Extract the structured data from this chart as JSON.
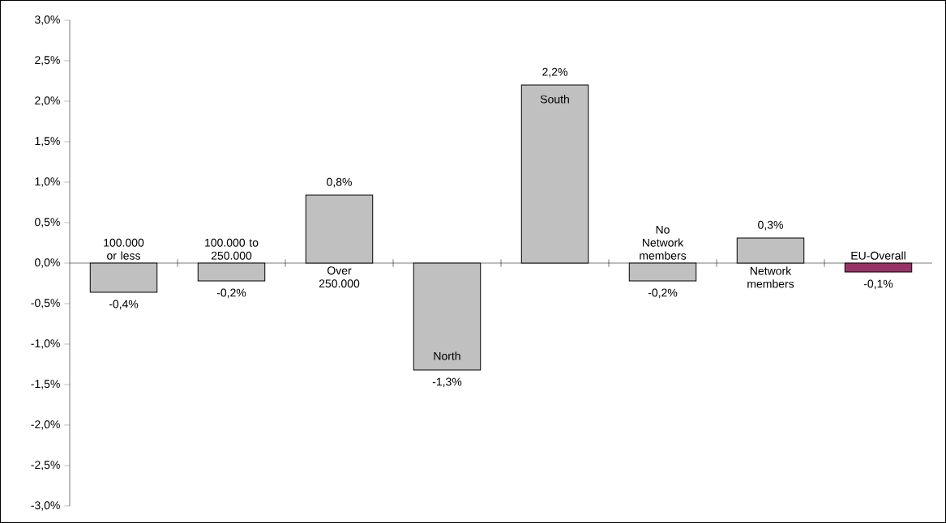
{
  "chart_data": {
    "type": "bar",
    "categories": [
      "100.000 or less",
      "100.000 to 250.000",
      "Over 250.000",
      "North",
      "South",
      "No  Network members",
      "Network members",
      "EU-Overall"
    ],
    "values": [
      -0.36,
      -0.22,
      0.84,
      -1.32,
      2.2,
      -0.22,
      0.31,
      -0.11
    ],
    "value_labels": [
      "-0,4%",
      "-0,2%",
      "0,8%",
      "-1,3%",
      "2,2%",
      "-0,2%",
      "0,3%",
      "-0,1%"
    ],
    "colors": [
      "#c0c0c0",
      "#c0c0c0",
      "#c0c0c0",
      "#c0c0c0",
      "#c0c0c0",
      "#c0c0c0",
      "#c0c0c0",
      "#993366"
    ],
    "ylim": [
      -3.0,
      3.0
    ],
    "yticks": [
      {
        "value": -3.0,
        "label": "-3,0%"
      },
      {
        "value": -2.5,
        "label": "-2,5%"
      },
      {
        "value": -2.0,
        "label": "-2,0%"
      },
      {
        "value": -1.5,
        "label": "-1,5%"
      },
      {
        "value": -1.0,
        "label": "-1,0%"
      },
      {
        "value": -0.5,
        "label": "-0,5%"
      },
      {
        "value": 0.0,
        "label": "0,0%"
      },
      {
        "value": 0.5,
        "label": "0,5%"
      },
      {
        "value": 1.0,
        "label": "1,0%"
      },
      {
        "value": 1.5,
        "label": "1,5%"
      },
      {
        "value": 2.0,
        "label": "2,0%"
      },
      {
        "value": 2.5,
        "label": "2,5%"
      },
      {
        "value": 3.0,
        "label": "3,0%"
      }
    ]
  }
}
